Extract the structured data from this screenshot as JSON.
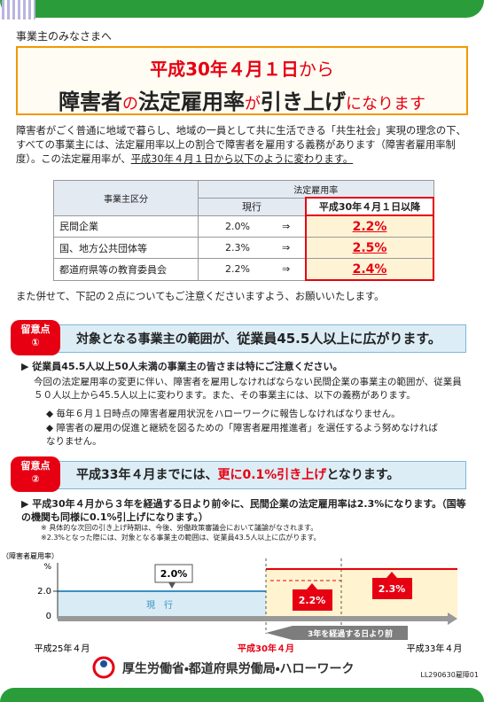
{
  "header": {
    "greeting": "事業主のみなさまへ",
    "title_date": "平成30年４月１日",
    "title_from": "から",
    "title_parts": [
      "障害者",
      "の",
      "法定雇用率",
      "が",
      "引き上げ",
      "になります"
    ]
  },
  "intro": {
    "text": "障害者がごく普通に地域で暮らし、地域の一員として共に生活できる「共生社会」実現の理念の下、すべての事業主には、法定雇用率以上の割合で障害者を雇用する義務があります（障害者雇用率制度）。この法定雇用率が、",
    "underlined": "平成30年４月１日から以下のように変わります。"
  },
  "table": {
    "header": {
      "category": "事業主区分",
      "rate": "法定雇用率",
      "current": "現行",
      "new": "平成30年４月１日以降"
    },
    "rows": [
      {
        "category": "民間企業",
        "current": "2.0%",
        "arrow": "⇒",
        "new": "2.2%"
      },
      {
        "category": "国、地方公共団体等",
        "current": "2.3%",
        "arrow": "⇒",
        "new": "2.5%"
      },
      {
        "category": "都道府県等の教育委員会",
        "current": "2.2%",
        "arrow": "⇒",
        "new": "2.4%"
      }
    ]
  },
  "request": "また併せて、下記の２点についてもご注意くださいますよう、お願いいたします。",
  "point1": {
    "badge": "留意点",
    "number": "①",
    "heading": "対象となる事業主の範囲が、",
    "heading_bold": "従業員45.5人以上に広がります。",
    "lead": "▶ 従業員45.5人以上50人未満の事業主の皆さまは特にご注意ください。",
    "body": "今回の法定雇用率の変更に伴い、障害者を雇用しなければならない民間企業の事業主の範囲が、従業員５０人以上から45.5人以上に変わります。また、その事業主には、以下の義務があります。",
    "bullets": [
      "◆ 毎年６月１日時点の障害者雇用状況をハローワークに報告しなければなりません。",
      "◆ 障害者の雇用の促進と継続を図るための「障害者雇用推進者」を選任するよう努めなければなりません。"
    ]
  },
  "point2": {
    "badge": "留意点",
    "number": "②",
    "heading": "平成33年４月までには、",
    "heading_bold": "更に0.1%引き上げ",
    "heading_end": "となります。",
    "lead": "▶ 平成30年４月から３年を経過する日より前※に、民間企業の法定雇用率は2.3%になります。（国等の機関も同様に0.1%引上げになります。）",
    "notes": [
      "※ 具体的な次回の引き上げ時期は、今後、労働政策審議会において議論がなされます。",
      "※2.3%となった際には、対象となる事業主の範囲は、従業員43.5人以上に広がります。"
    ]
  },
  "chart": {
    "y_axis_label": "（障害者雇用率）",
    "unit": "%",
    "ticks": [
      "2.0",
      "0"
    ],
    "callout": "2.0%",
    "current_label": "現　行",
    "steps": [
      "2.2%",
      "2.3%"
    ],
    "period": "3年を経過する日より前",
    "x_labels": [
      "平成25年４月",
      "平成30年４月",
      "平成33年４月"
    ]
  },
  "footer": {
    "org": "厚生労働省・都道府県労働局・ハローワーク",
    "code": "LL290630雇障01"
  }
}
